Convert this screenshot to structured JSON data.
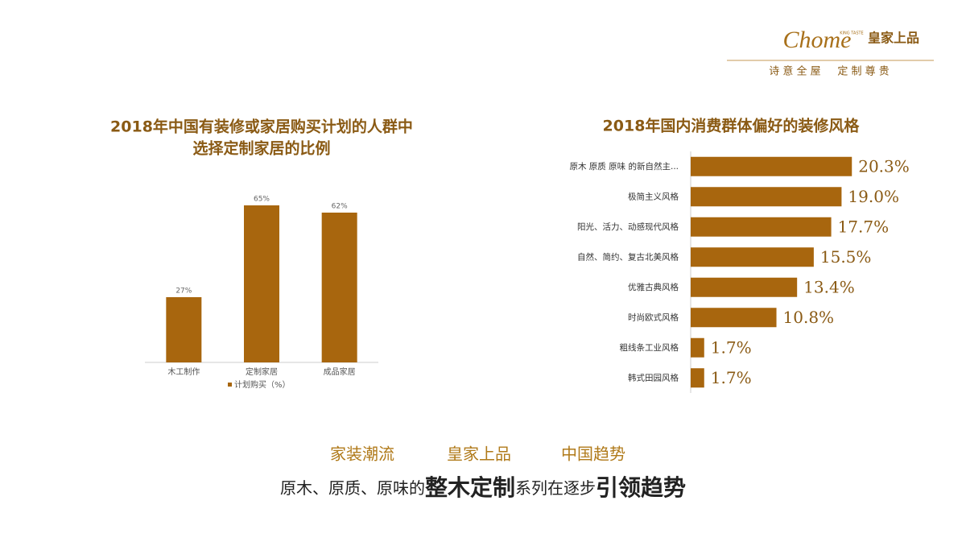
{
  "header": {
    "logo": "Chome",
    "logo_small": "KING TASTE",
    "brand": "皇家上品",
    "slogan": "诗 意 全 屋     定 制 尊 贵"
  },
  "chart_data": [
    {
      "type": "bar",
      "title": [
        "2018年中国有装修或家居购买计划的人群中",
        "选择定制家居的比例"
      ],
      "categories": [
        "木工制作",
        "定制家居",
        "成品家居"
      ],
      "series": [
        {
          "name": "计划购买（%）",
          "color": "#a8660e",
          "values": [
            27,
            65,
            62
          ],
          "value_labels": [
            "27%",
            "65%",
            "62%"
          ]
        }
      ],
      "ylim": [
        0,
        70
      ]
    },
    {
      "type": "hbar",
      "title": "2018年国内消费群体偏好的装修风格",
      "categories": [
        "原木 原质 原味 的新自然主...",
        "极简主义风格",
        "阳光、活力、动感现代风格",
        "自然、简约、复古北美风格",
        "优雅古典风格",
        "时尚欧式风格",
        "粗线条工业风格",
        "韩式田园风格"
      ],
      "values": [
        20.3,
        19.0,
        17.7,
        15.5,
        13.4,
        10.8,
        1.7,
        1.7
      ],
      "value_labels": [
        "20.3%",
        "19.0%",
        "17.7%",
        "15.5%",
        "13.4%",
        "10.8%",
        "1.7%",
        "1.7%"
      ],
      "color": "#a8660e",
      "xlim": [
        0,
        22
      ]
    }
  ],
  "footer": {
    "tags": [
      "家装潮流",
      "皇家上品",
      "中国趋势"
    ],
    "line": [
      "原木、原质、原味的",
      "整木定制",
      "系列在逐步",
      "引领趋势"
    ]
  }
}
